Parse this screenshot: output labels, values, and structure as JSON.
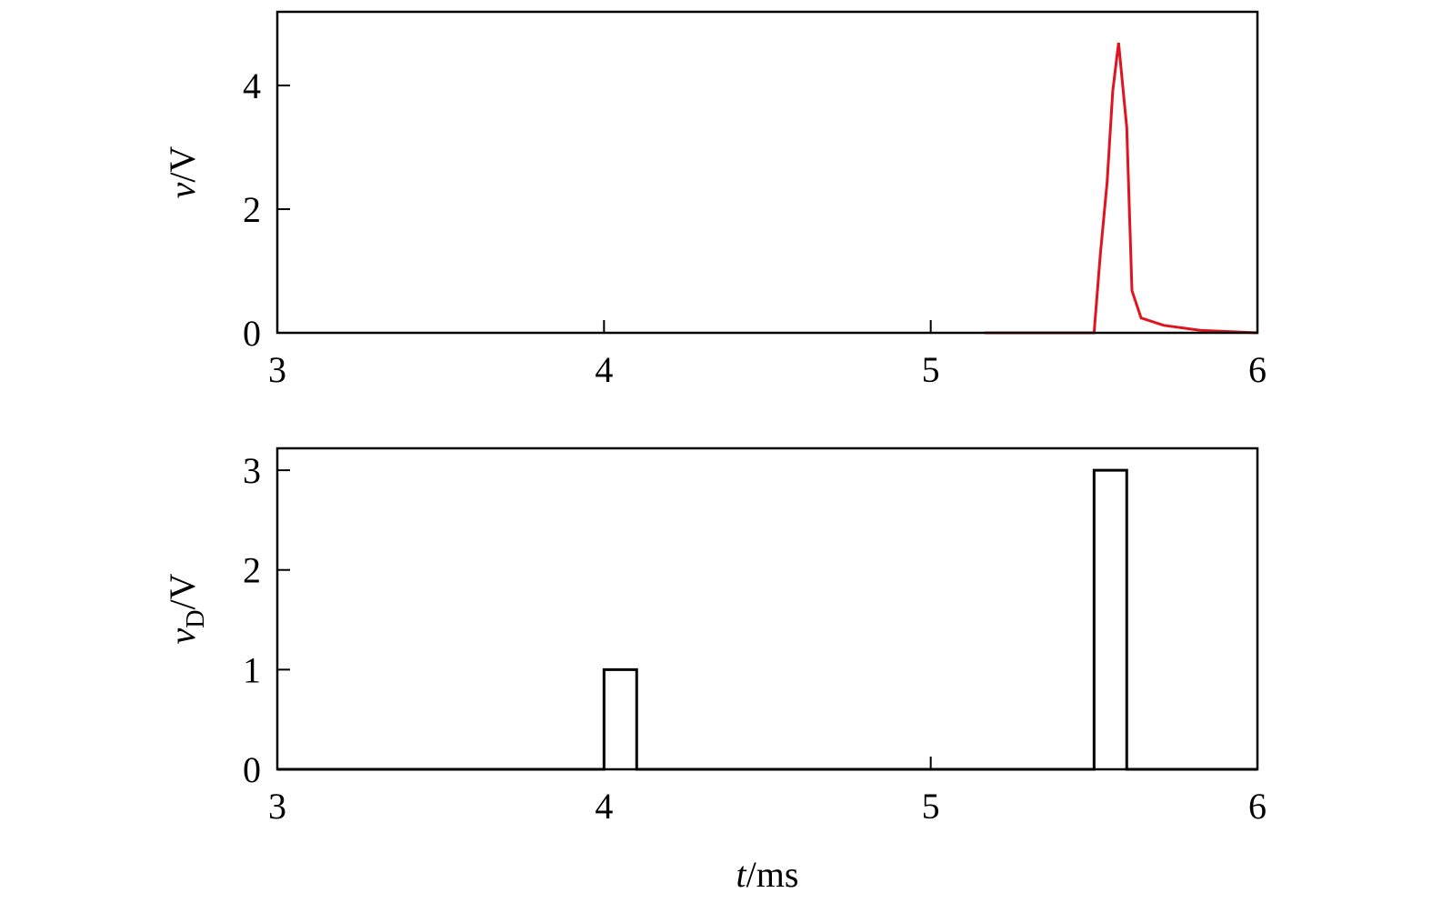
{
  "chart_data": [
    {
      "type": "line",
      "ylabel": [
        "v",
        "/V"
      ],
      "series": [
        {
          "color": "#e0141e",
          "x": [
            5.165,
            5.5,
            5.519,
            5.54,
            5.557,
            5.575,
            5.6,
            5.616,
            5.644,
            5.714,
            5.825,
            6.0
          ],
          "values": [
            0,
            0,
            1.26,
            2.44,
            3.9,
            4.69,
            3.32,
            0.68,
            0.24,
            0.12,
            0.04,
            0
          ]
        }
      ],
      "xlim": [
        3,
        6
      ],
      "xticks": [
        3,
        4,
        5,
        6
      ],
      "ylim": [
        0,
        5.19
      ],
      "yticks": [
        0,
        2,
        4
      ]
    },
    {
      "type": "line",
      "ylabel": [
        "v",
        "D",
        "/V"
      ],
      "xlabel": [
        "t",
        "/ms"
      ],
      "series": [
        {
          "color": "#000000",
          "x": [
            3,
            4.0,
            4.0,
            4.1,
            4.1,
            5.5,
            5.5,
            5.6,
            5.6,
            6
          ],
          "values": [
            0,
            0,
            1,
            1,
            0,
            0,
            3,
            3,
            0,
            0
          ]
        }
      ],
      "xlim": [
        3,
        6
      ],
      "xticks": [
        3,
        4,
        5,
        6
      ],
      "ylim": [
        0,
        3.22
      ],
      "yticks": [
        0,
        1,
        2,
        3
      ]
    }
  ]
}
